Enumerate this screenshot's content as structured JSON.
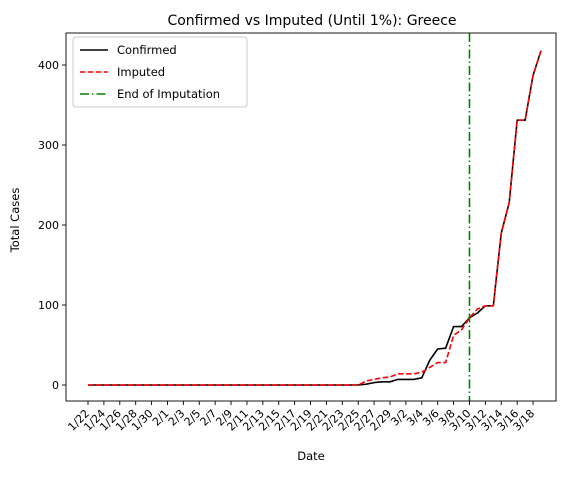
{
  "chart_data": {
    "type": "line",
    "title": "Confirmed vs Imputed (Until 1%): Greece",
    "xlabel": "Date",
    "ylabel": "Total Cases",
    "ylim": [
      -20,
      440
    ],
    "yticks": [
      0,
      100,
      200,
      300,
      400
    ],
    "grid": false,
    "legend_position": "top-left",
    "x": [
      "1/22",
      "1/23",
      "1/24",
      "1/25",
      "1/26",
      "1/27",
      "1/28",
      "1/29",
      "1/30",
      "1/31",
      "2/1",
      "2/2",
      "2/3",
      "2/4",
      "2/5",
      "2/6",
      "2/7",
      "2/8",
      "2/9",
      "2/10",
      "2/11",
      "2/12",
      "2/13",
      "2/14",
      "2/15",
      "2/16",
      "2/17",
      "2/18",
      "2/19",
      "2/20",
      "2/21",
      "2/22",
      "2/23",
      "2/24",
      "2/25",
      "2/26",
      "2/27",
      "2/28",
      "2/29",
      "3/1",
      "3/2",
      "3/3",
      "3/4",
      "3/5",
      "3/6",
      "3/7",
      "3/8",
      "3/9",
      "3/10",
      "3/11",
      "3/12",
      "3/13",
      "3/14",
      "3/15",
      "3/16",
      "3/17",
      "3/18",
      "3/19"
    ],
    "xtick_labels": [
      "1/22",
      "1/24",
      "1/26",
      "1/28",
      "1/30",
      "2/1",
      "2/3",
      "2/5",
      "2/7",
      "2/9",
      "2/11",
      "2/13",
      "2/15",
      "2/17",
      "2/19",
      "2/21",
      "2/23",
      "2/25",
      "2/27",
      "2/29",
      "3/2",
      "3/4",
      "3/6",
      "3/8",
      "3/10",
      "3/12",
      "3/14",
      "3/16",
      "3/18"
    ],
    "series": [
      {
        "name": "Confirmed",
        "color": "#000000",
        "style": "solid",
        "values": [
          0,
          0,
          0,
          0,
          0,
          0,
          0,
          0,
          0,
          0,
          0,
          0,
          0,
          0,
          0,
          0,
          0,
          0,
          0,
          0,
          0,
          0,
          0,
          0,
          0,
          0,
          0,
          0,
          0,
          0,
          0,
          0,
          0,
          0,
          0,
          1,
          3,
          4,
          4,
          7,
          7,
          7,
          9,
          31,
          45,
          46,
          73,
          73,
          84,
          90,
          99,
          99,
          190,
          228,
          331,
          331,
          387,
          418
        ]
      },
      {
        "name": "Imputed",
        "color": "#ff0000",
        "style": "dashed",
        "values": [
          0,
          0,
          0,
          0,
          0,
          0,
          0,
          0,
          0,
          0,
          0,
          0,
          0,
          0,
          0,
          0,
          0,
          0,
          0,
          0,
          0,
          0,
          0,
          0,
          0,
          0,
          0,
          0,
          0,
          0,
          0,
          0,
          0,
          0,
          0,
          5,
          7,
          9,
          10,
          14,
          14,
          14,
          16,
          22,
          28,
          28,
          62,
          69,
          84,
          95,
          99,
          99,
          190,
          228,
          331,
          331,
          387,
          418
        ]
      },
      {
        "name": "End of Imputation",
        "color": "#008000",
        "style": "dashdot",
        "vline_x": "3/10"
      }
    ]
  }
}
